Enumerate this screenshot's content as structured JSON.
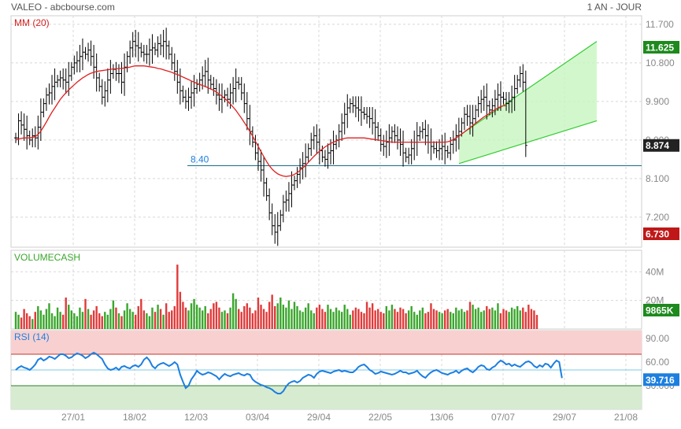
{
  "header": {
    "title": "VALEO - abcbourse.com",
    "period": "1 AN - JOUR"
  },
  "colors": {
    "up": "#3aa62c",
    "down": "#e03a3a",
    "ma": "#e02020",
    "rsi": "#1c7fe0",
    "support": "#1b6f8a"
  },
  "chart_data": [
    {
      "type": "candlestick",
      "name": "price",
      "indicator_label": "MM (20)",
      "ylim": [
        6.5,
        11.9
      ],
      "y_ticks": [
        "11.700",
        "10.800",
        "9.900",
        "9.000",
        "8.100",
        "7.200"
      ],
      "x_ticks": [
        "27/01",
        "18/02",
        "12/03",
        "03/04",
        "29/04",
        "22/05",
        "13/06",
        "07/07",
        "29/07",
        "21/08"
      ],
      "support_level": 8.4,
      "support_label": "8.40",
      "badges": {
        "high": "11.625",
        "last": "8.874",
        "low": "6.730"
      },
      "channel": {
        "x_start": "18/06",
        "x_end": "15/08",
        "lower": [
          8.45,
          9.45
        ],
        "upper": [
          9.1,
          11.3
        ]
      },
      "close": [
        9.05,
        9.45,
        9.35,
        9.25,
        9.1,
        9.0,
        9.1,
        9.05,
        9.3,
        9.65,
        9.85,
        10.05,
        10.1,
        10.25,
        10.35,
        10.4,
        10.45,
        10.4,
        10.35,
        10.5,
        10.7,
        10.8,
        10.85,
        10.95,
        11.05,
        11.0,
        11.1,
        10.95,
        10.7,
        10.45,
        10.25,
        10.0,
        10.15,
        10.4,
        10.55,
        10.65,
        10.55,
        10.55,
        10.35,
        10.7,
        10.95,
        11.15,
        11.3,
        11.2,
        11.15,
        11.05,
        11.0,
        11.0,
        11.1,
        11.15,
        11.1,
        11.25,
        11.2,
        11.3,
        11.2,
        11.0,
        10.8,
        10.6,
        10.35,
        10.15,
        10.0,
        9.9,
        10.0,
        10.1,
        10.2,
        10.3,
        10.4,
        10.5,
        10.6,
        10.4,
        10.3,
        10.2,
        10.05,
        9.95,
        10.0,
        10.05,
        9.95,
        10.1,
        10.2,
        10.35,
        10.3,
        10.1,
        9.85,
        9.5,
        9.2,
        8.95,
        8.7,
        8.5,
        8.3,
        8.0,
        7.7,
        7.3,
        7.0,
        6.85,
        7.0,
        7.25,
        7.55,
        7.6,
        7.75,
        7.95,
        8.05,
        8.2,
        8.35,
        8.45,
        8.6,
        8.8,
        9.0,
        9.1,
        8.95,
        8.75,
        8.6,
        8.55,
        8.7,
        8.75,
        8.9,
        9.0,
        9.2,
        9.4,
        9.6,
        9.75,
        9.85,
        9.8,
        9.75,
        9.7,
        9.65,
        9.6,
        9.55,
        9.5,
        9.4,
        9.3,
        9.1,
        8.9,
        8.85,
        8.95,
        9.05,
        9.2,
        9.1,
        9.0,
        8.9,
        8.7,
        8.6,
        8.65,
        8.8,
        8.95,
        9.1,
        9.2,
        9.25,
        9.1,
        8.95,
        8.85,
        8.8,
        8.75,
        8.8,
        8.85,
        8.75,
        8.7,
        8.9,
        9.0,
        9.1,
        9.2,
        9.4,
        9.6,
        9.55,
        9.4,
        9.5,
        9.7,
        9.85,
        9.95,
        10.0,
        9.8,
        9.7,
        9.8,
        9.95,
        10.05,
        10.0,
        9.95,
        9.85,
        9.9,
        10.0,
        10.2,
        10.4,
        10.55,
        10.35,
        8.874
      ],
      "ma20": [
        9.0,
        9.02,
        9.04,
        9.05,
        9.05,
        9.05,
        9.06,
        9.08,
        9.13,
        9.21,
        9.31,
        9.42,
        9.54,
        9.65,
        9.75,
        9.85,
        9.95,
        10.03,
        10.1,
        10.17,
        10.23,
        10.29,
        10.35,
        10.4,
        10.45,
        10.49,
        10.53,
        10.56,
        10.58,
        10.6,
        10.61,
        10.62,
        10.63,
        10.64,
        10.65,
        10.66,
        10.66,
        10.67,
        10.67,
        10.68,
        10.69,
        10.7,
        10.72,
        10.73,
        10.73,
        10.73,
        10.73,
        10.72,
        10.71,
        10.7,
        10.69,
        10.67,
        10.66,
        10.64,
        10.62,
        10.6,
        10.58,
        10.55,
        10.53,
        10.5,
        10.47,
        10.44,
        10.41,
        10.38,
        10.35,
        10.32,
        10.3,
        10.27,
        10.25,
        10.22,
        10.19,
        10.16,
        10.12,
        10.07,
        10.02,
        9.97,
        9.91,
        9.84,
        9.77,
        9.69,
        9.6,
        9.51,
        9.41,
        9.31,
        9.2,
        9.09,
        8.97,
        8.85,
        8.73,
        8.61,
        8.5,
        8.4,
        8.32,
        8.26,
        8.21,
        8.18,
        8.16,
        8.15,
        8.16,
        8.17,
        8.2,
        8.24,
        8.29,
        8.35,
        8.41,
        8.48,
        8.55,
        8.62,
        8.68,
        8.74,
        8.79,
        8.84,
        8.88,
        8.92,
        8.95,
        8.98,
        9.0,
        9.02,
        9.04,
        9.05,
        9.05,
        9.05,
        9.05,
        9.05,
        9.05,
        9.05,
        9.04,
        9.03,
        9.02,
        9.01,
        9.0,
        8.99,
        8.98,
        8.97,
        8.96,
        8.95,
        8.95,
        8.95,
        8.95,
        8.95,
        8.95,
        8.95,
        8.95,
        8.95,
        8.95,
        8.95,
        8.95,
        8.95,
        8.95,
        8.95,
        8.95,
        8.95,
        8.95,
        8.95,
        8.95,
        8.96,
        8.98,
        9.01,
        9.05,
        9.09,
        9.14,
        9.19,
        9.24,
        9.29,
        9.34,
        9.39,
        9.44,
        9.49,
        9.54,
        9.58,
        9.62,
        9.67,
        9.71,
        9.75,
        9.78,
        9.8,
        9.8
      ]
    },
    {
      "type": "bar",
      "name": "volume",
      "indicator_label": "VOLUMECASH",
      "ylim": [
        0,
        55
      ],
      "y_ticks": [
        "40M",
        "20M"
      ],
      "badge": "9865K",
      "values": [
        12,
        10,
        8,
        14,
        11,
        9,
        7,
        12,
        16,
        13,
        10,
        14,
        18,
        11,
        9,
        15,
        12,
        10,
        22,
        17,
        13,
        11,
        9,
        15,
        12,
        21,
        14,
        10,
        13,
        16,
        11,
        9,
        12,
        10,
        14,
        20,
        15,
        11,
        9,
        13,
        18,
        14,
        12,
        10,
        16,
        21,
        13,
        11,
        9,
        15,
        12,
        17,
        14,
        10,
        18,
        12,
        13,
        16,
        45,
        26,
        19,
        15,
        13,
        18,
        21,
        17,
        15,
        13,
        16,
        11,
        14,
        18,
        19,
        15,
        12,
        13,
        11,
        15,
        25,
        21,
        14,
        12,
        16,
        18,
        15,
        11,
        13,
        22,
        17,
        14,
        12,
        19,
        24,
        16,
        18,
        22,
        17,
        15,
        20,
        14,
        19,
        16,
        13,
        12,
        15,
        18,
        13,
        11,
        15,
        17,
        14,
        12,
        17,
        14,
        12,
        15,
        13,
        12,
        17,
        14,
        10,
        13,
        15,
        14,
        12,
        11,
        19,
        15,
        18,
        13,
        14,
        12,
        11,
        16,
        13,
        17,
        14,
        12,
        15,
        14,
        11,
        13,
        16,
        12,
        10,
        13,
        15,
        11,
        12,
        18,
        14,
        13,
        12,
        11,
        13,
        14,
        12,
        11,
        15,
        13,
        14,
        12,
        13,
        19,
        17,
        14,
        15,
        12,
        13,
        16,
        14,
        15,
        13,
        18,
        11,
        14,
        13,
        12,
        15,
        14,
        16,
        13,
        15,
        12,
        17,
        14,
        13,
        9.865
      ]
    },
    {
      "type": "line",
      "name": "rsi",
      "indicator_label": "RSI (14)",
      "ylim": [
        0,
        100
      ],
      "y_ticks": [
        "90.00",
        "60.00",
        "30.000"
      ],
      "bands": [
        30,
        70
      ],
      "badge": "39.716",
      "values": [
        50,
        53,
        55,
        53,
        52,
        50,
        53,
        57,
        63,
        65,
        62,
        64,
        67,
        66,
        64,
        67,
        70,
        70,
        68,
        65,
        66,
        69,
        71,
        70,
        68,
        65,
        67,
        70,
        72,
        70,
        67,
        64,
        57,
        52,
        50,
        51,
        53,
        50,
        54,
        55,
        53,
        52,
        55,
        56,
        54,
        57,
        63,
        66,
        62,
        55,
        52,
        56,
        58,
        59,
        57,
        55,
        57,
        60,
        57,
        44,
        35,
        27,
        30,
        38,
        43,
        49,
        46,
        44,
        45,
        47,
        46,
        44,
        42,
        38,
        42,
        45,
        43,
        42,
        44,
        45,
        46,
        44,
        43,
        45,
        44,
        38,
        35,
        33,
        31,
        30,
        28,
        27,
        25,
        22,
        20,
        20,
        23,
        29,
        33,
        35,
        36,
        34,
        36,
        40,
        42,
        44,
        43,
        40,
        45,
        48,
        49,
        48,
        47,
        46,
        48,
        49,
        50,
        48,
        49,
        48,
        47,
        47,
        50,
        54,
        56,
        57,
        54,
        50,
        48,
        45,
        46,
        48,
        47,
        46,
        45,
        44,
        45,
        47,
        49,
        47,
        47,
        45,
        46,
        47,
        49,
        45,
        42,
        40,
        44,
        47,
        49,
        50,
        48,
        46,
        45,
        44,
        46,
        47,
        49,
        46,
        49,
        51,
        52,
        49,
        47,
        50,
        54,
        56,
        55,
        51,
        50,
        53,
        55,
        59,
        62,
        60,
        57,
        58,
        55,
        57,
        55,
        54,
        57,
        60,
        61,
        59,
        55,
        53,
        56,
        54,
        58,
        57,
        53,
        58,
        62,
        60,
        39.716
      ]
    }
  ]
}
